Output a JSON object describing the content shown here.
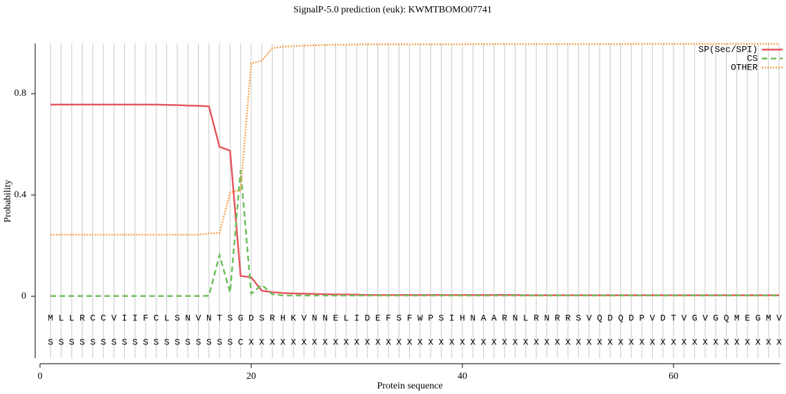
{
  "chart_data": {
    "type": "line",
    "title": "SignalP-5.0 prediction (euk):  KWMTBOMO07741",
    "x_label": "Protein sequence",
    "y_label": "Probability",
    "x": [
      1,
      2,
      3,
      4,
      5,
      6,
      7,
      8,
      9,
      10,
      11,
      12,
      13,
      14,
      15,
      16,
      17,
      18,
      19,
      20,
      21,
      22,
      23,
      24,
      25,
      26,
      27,
      28,
      29,
      30,
      31,
      32,
      33,
      34,
      35,
      36,
      37,
      38,
      39,
      40,
      41,
      42,
      43,
      44,
      45,
      46,
      47,
      48,
      49,
      50,
      51,
      52,
      53,
      54,
      55,
      56,
      57,
      58,
      59,
      60,
      61,
      62,
      63,
      64,
      65,
      66,
      67,
      68,
      69,
      70
    ],
    "residues": [
      "M",
      "L",
      "L",
      "R",
      "C",
      "C",
      "V",
      "I",
      "I",
      "F",
      "C",
      "L",
      "S",
      "N",
      "V",
      "N",
      "T",
      "S",
      "G",
      "D",
      "S",
      "R",
      "H",
      "K",
      "V",
      "N",
      "N",
      "E",
      "L",
      "I",
      "D",
      "E",
      "F",
      "S",
      "F",
      "W",
      "P",
      "S",
      "I",
      "H",
      "N",
      "A",
      "A",
      "R",
      "N",
      "L",
      "R",
      "N",
      "R",
      "R",
      "S",
      "V",
      "Q",
      "D",
      "Q",
      "D",
      "P",
      "V",
      "D",
      "T",
      "V",
      "G",
      "V",
      "G",
      "Q",
      "M",
      "E",
      "G",
      "M",
      "V"
    ],
    "annotations": [
      "S",
      "S",
      "S",
      "S",
      "S",
      "S",
      "S",
      "S",
      "S",
      "S",
      "S",
      "S",
      "S",
      "S",
      "S",
      "S",
      "S",
      "S",
      "C",
      "X",
      "X",
      "X",
      "X",
      "X",
      "X",
      "X",
      "X",
      "X",
      "X",
      "X",
      "X",
      "X",
      "X",
      "X",
      "X",
      "X",
      "X",
      "X",
      "X",
      "X",
      "X",
      "X",
      "X",
      "X",
      "X",
      "X",
      "X",
      "X",
      "X",
      "X",
      "X",
      "X",
      "X",
      "X",
      "X",
      "X",
      "X",
      "X",
      "X",
      "X",
      "X",
      "X",
      "X",
      "X",
      "X",
      "X",
      "X",
      "X",
      "X",
      "X"
    ],
    "series": [
      {
        "name": "SP(Sec/SPI)",
        "color": "#e5565e",
        "dash": "none",
        "values": [
          0.757,
          0.757,
          0.757,
          0.757,
          0.757,
          0.757,
          0.757,
          0.757,
          0.757,
          0.757,
          0.757,
          0.756,
          0.755,
          0.753,
          0.752,
          0.75,
          0.59,
          0.575,
          0.08,
          0.075,
          0.022,
          0.016,
          0.013,
          0.011,
          0.01,
          0.009,
          0.008,
          0.007,
          0.007,
          0.006,
          0.005,
          0.005,
          0.005,
          0.005,
          0.005,
          0.005,
          0.005,
          0.005,
          0.005,
          0.005,
          0.005,
          0.005,
          0.005,
          0.005,
          0.005,
          0.004,
          0.004,
          0.004,
          0.004,
          0.004,
          0.004,
          0.004,
          0.004,
          0.004,
          0.004,
          0.004,
          0.004,
          0.004,
          0.004,
          0.004,
          0.004,
          0.004,
          0.004,
          0.004,
          0.004,
          0.004,
          0.004,
          0.004,
          0.004,
          0.004
        ]
      },
      {
        "name": "CS",
        "color": "#6dbf5a",
        "dash": "8,5",
        "values": [
          0.001,
          0.001,
          0.001,
          0.001,
          0.001,
          0.001,
          0.001,
          0.001,
          0.001,
          0.001,
          0.001,
          0.001,
          0.001,
          0.001,
          0.001,
          0.002,
          0.163,
          0.015,
          0.498,
          0.01,
          0.045,
          0.008,
          0.003,
          0.003,
          0.003,
          0.003,
          0.003,
          0.003,
          0.003,
          0.003,
          0.003,
          0.003,
          0.003,
          0.003,
          0.003,
          0.003,
          0.003,
          0.003,
          0.003,
          0.003,
          0.003,
          0.003,
          0.003,
          0.003,
          0.003,
          0.003,
          0.003,
          0.003,
          0.003,
          0.003,
          0.003,
          0.003,
          0.003,
          0.003,
          0.003,
          0.003,
          0.003,
          0.003,
          0.003,
          0.003,
          0.003,
          0.003,
          0.003,
          0.003,
          0.003,
          0.003,
          0.003,
          0.003,
          0.003,
          0.003
        ]
      },
      {
        "name": "OTHER",
        "color": "#f5a04a",
        "dash": "2,2",
        "values": [
          0.243,
          0.243,
          0.243,
          0.243,
          0.243,
          0.243,
          0.243,
          0.243,
          0.243,
          0.243,
          0.243,
          0.243,
          0.243,
          0.243,
          0.243,
          0.248,
          0.25,
          0.41,
          0.42,
          0.92,
          0.93,
          0.98,
          0.985,
          0.988,
          0.99,
          0.991,
          0.992,
          0.993,
          0.993,
          0.994,
          0.995,
          0.995,
          0.995,
          0.995,
          0.995,
          0.995,
          0.995,
          0.995,
          0.995,
          0.995,
          0.996,
          0.996,
          0.996,
          0.996,
          0.996,
          0.996,
          0.996,
          0.996,
          0.996,
          0.996,
          0.996,
          0.996,
          0.996,
          0.996,
          0.996,
          0.997,
          0.997,
          0.997,
          0.997,
          0.997,
          0.997,
          0.997,
          0.997,
          0.997,
          0.997,
          0.997,
          0.997,
          0.997,
          0.997,
          0.997
        ]
      }
    ],
    "xlim": [
      0,
      70
    ],
    "xticks": [
      0,
      20,
      40,
      60
    ],
    "ylim": [
      -0.25,
      1.0
    ],
    "yticks": [
      0,
      0.4,
      0.8
    ],
    "grid": true,
    "legend": "top-right"
  }
}
